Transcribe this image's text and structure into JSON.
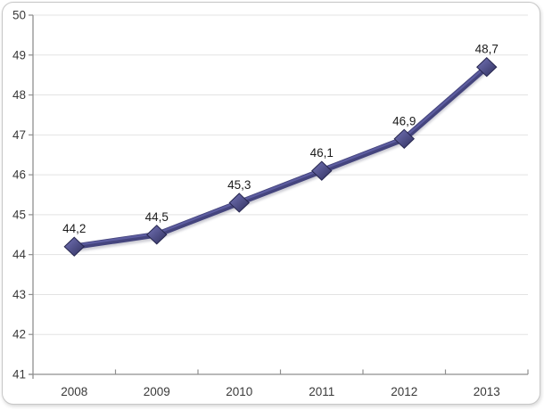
{
  "chart_data": {
    "type": "line",
    "title": "",
    "xlabel": "",
    "ylabel": "",
    "categories": [
      "2008",
      "2009",
      "2010",
      "2011",
      "2012",
      "2013"
    ],
    "series": [
      {
        "name": "series-1",
        "values": [
          44.2,
          44.5,
          45.3,
          46.1,
          46.9,
          48.7
        ],
        "point_labels": [
          "44,2",
          "44,5",
          "45,3",
          "46,1",
          "46,9",
          "48,7"
        ]
      }
    ],
    "ylim": [
      41,
      50
    ],
    "ytick_step": 1,
    "ytick_labels": [
      "41",
      "42",
      "43",
      "44",
      "45",
      "46",
      "47",
      "48",
      "49",
      "50"
    ],
    "grid": true,
    "legend_position": "none",
    "marker": "diamond",
    "colors": {
      "line": "#45457e",
      "line_highlight": "#6161a6",
      "line_shadow": "#8b8b9d",
      "marker_fill_light": "#7474b8",
      "marker_fill_dark": "#30305e",
      "marker_stroke": "#26264e",
      "gridline": "#e3e3e3",
      "axis": "#8f8f8f",
      "tick_label": "#3a3a3a",
      "data_label": "#1b1b1b"
    }
  }
}
